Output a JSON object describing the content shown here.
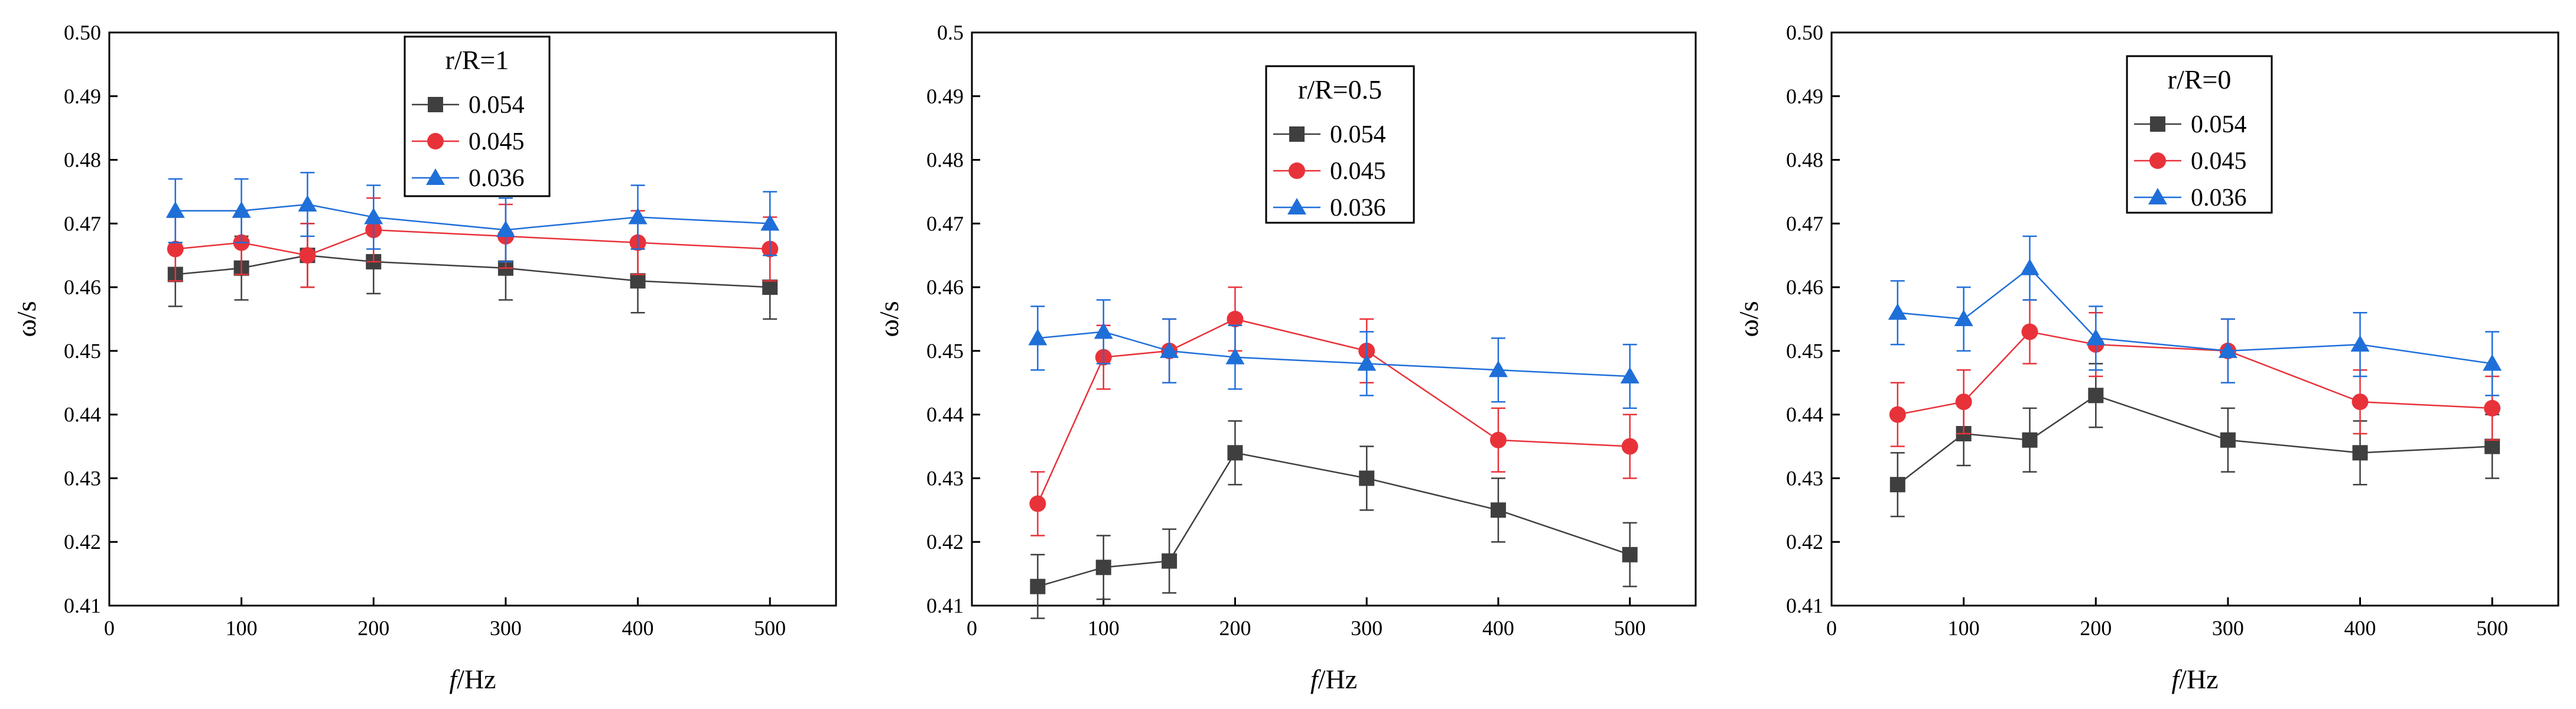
{
  "figure": {
    "description_domain": "chart"
  },
  "chart_data": [
    {
      "type": "line",
      "title": "",
      "xlabel": "f/Hz",
      "xlabel_italic_part": "f",
      "xlabel_unit_part": "/Hz",
      "ylabel": "ω/s",
      "xlim": [
        0,
        550
      ],
      "ylim": [
        0.41,
        0.5
      ],
      "x_ticks": [
        0,
        100,
        200,
        300,
        400,
        500
      ],
      "y_ticks": [
        0.41,
        0.42,
        0.43,
        0.44,
        0.45,
        0.46,
        0.47,
        0.48,
        0.49,
        0.5
      ],
      "y_tick_labels": [
        "0.41",
        "0.42",
        "0.43",
        "0.44",
        "0.45",
        "0.46",
        "0.47",
        "0.48",
        "0.49",
        "0.50"
      ],
      "x_tick_labels": [
        "0",
        "100",
        "200",
        "300",
        "400",
        "500"
      ],
      "legend_title": "r/R=1",
      "legend_position": "top-center",
      "x": [
        50,
        100,
        150,
        200,
        300,
        400,
        500
      ],
      "series": [
        {
          "name": "0.054",
          "color": "#3f3f3f",
          "marker": "square",
          "values": [
            0.462,
            0.463,
            0.465,
            0.464,
            0.463,
            0.461,
            0.46
          ],
          "errors": [
            0.005,
            0.005,
            0.005,
            0.005,
            0.005,
            0.005,
            0.005
          ]
        },
        {
          "name": "0.045",
          "color": "#e8323a",
          "marker": "circle",
          "values": [
            0.466,
            0.467,
            0.465,
            0.469,
            0.468,
            0.467,
            0.466
          ],
          "errors": [
            0.005,
            0.005,
            0.005,
            0.005,
            0.005,
            0.005,
            0.005
          ]
        },
        {
          "name": "0.036",
          "color": "#1f6fd9",
          "marker": "triangle",
          "values": [
            0.472,
            0.472,
            0.473,
            0.471,
            0.469,
            0.471,
            0.47
          ],
          "errors": [
            0.005,
            0.005,
            0.005,
            0.005,
            0.005,
            0.005,
            0.005
          ]
        }
      ]
    },
    {
      "type": "line",
      "title": "",
      "xlabel": "f/Hz",
      "xlabel_italic_part": "f",
      "xlabel_unit_part": "/Hz",
      "ylabel": "ω/s",
      "xlim": [
        0,
        550
      ],
      "ylim": [
        0.41,
        0.5
      ],
      "x_ticks": [
        0,
        100,
        200,
        300,
        400,
        500
      ],
      "y_ticks": [
        0.41,
        0.42,
        0.43,
        0.44,
        0.45,
        0.46,
        0.47,
        0.48,
        0.49,
        0.5
      ],
      "y_tick_labels": [
        "0.41",
        "0.42",
        "0.43",
        "0.44",
        "0.45",
        "0.46",
        "0.47",
        "0.48",
        "0.49",
        "0.5"
      ],
      "x_tick_labels": [
        "0",
        "100",
        "200",
        "300",
        "400",
        "500"
      ],
      "legend_title": "r/R=0.5",
      "legend_position": "top-center",
      "x": [
        50,
        100,
        150,
        200,
        300,
        400,
        500
      ],
      "series": [
        {
          "name": "0.054",
          "color": "#3f3f3f",
          "marker": "square",
          "values": [
            0.413,
            0.416,
            0.417,
            0.434,
            0.43,
            0.425,
            0.418
          ],
          "errors": [
            0.005,
            0.005,
            0.005,
            0.005,
            0.005,
            0.005,
            0.005
          ]
        },
        {
          "name": "0.045",
          "color": "#e8323a",
          "marker": "circle",
          "values": [
            0.426,
            0.449,
            0.45,
            0.455,
            0.45,
            0.436,
            0.435
          ],
          "errors": [
            0.005,
            0.005,
            0.005,
            0.005,
            0.005,
            0.005,
            0.005
          ]
        },
        {
          "name": "0.036",
          "color": "#1f6fd9",
          "marker": "triangle",
          "values": [
            0.452,
            0.453,
            0.45,
            0.449,
            0.448,
            0.447,
            0.446
          ],
          "errors": [
            0.005,
            0.005,
            0.005,
            0.005,
            0.005,
            0.005,
            0.005
          ]
        }
      ]
    },
    {
      "type": "line",
      "title": "",
      "xlabel": "f/Hz",
      "xlabel_italic_part": "f",
      "xlabel_unit_part": "/Hz",
      "ylabel": "ω/s",
      "xlim": [
        0,
        550
      ],
      "ylim": [
        0.41,
        0.5
      ],
      "x_ticks": [
        0,
        100,
        200,
        300,
        400,
        500
      ],
      "y_ticks": [
        0.41,
        0.42,
        0.43,
        0.44,
        0.45,
        0.46,
        0.47,
        0.48,
        0.49,
        0.5
      ],
      "y_tick_labels": [
        "0.41",
        "0.42",
        "0.43",
        "0.44",
        "0.45",
        "0.46",
        "0.47",
        "0.48",
        "0.49",
        "0.50"
      ],
      "x_tick_labels": [
        "0",
        "100",
        "200",
        "300",
        "400",
        "500"
      ],
      "legend_title": "r/R=0",
      "legend_position": "top-center",
      "x": [
        50,
        100,
        150,
        200,
        300,
        400,
        500
      ],
      "series": [
        {
          "name": "0.054",
          "color": "#3f3f3f",
          "marker": "square",
          "values": [
            0.429,
            0.437,
            0.436,
            0.443,
            0.436,
            0.434,
            0.435
          ],
          "errors": [
            0.005,
            0.005,
            0.005,
            0.005,
            0.005,
            0.005,
            0.005
          ]
        },
        {
          "name": "0.045",
          "color": "#e8323a",
          "marker": "circle",
          "values": [
            0.44,
            0.442,
            0.453,
            0.451,
            0.45,
            0.442,
            0.441
          ],
          "errors": [
            0.005,
            0.005,
            0.005,
            0.005,
            0.005,
            0.005,
            0.005
          ]
        },
        {
          "name": "0.036",
          "color": "#1f6fd9",
          "marker": "triangle",
          "values": [
            0.456,
            0.455,
            0.463,
            0.452,
            0.45,
            0.451,
            0.448
          ],
          "errors": [
            0.005,
            0.005,
            0.005,
            0.005,
            0.005,
            0.005,
            0.005
          ]
        }
      ]
    }
  ]
}
